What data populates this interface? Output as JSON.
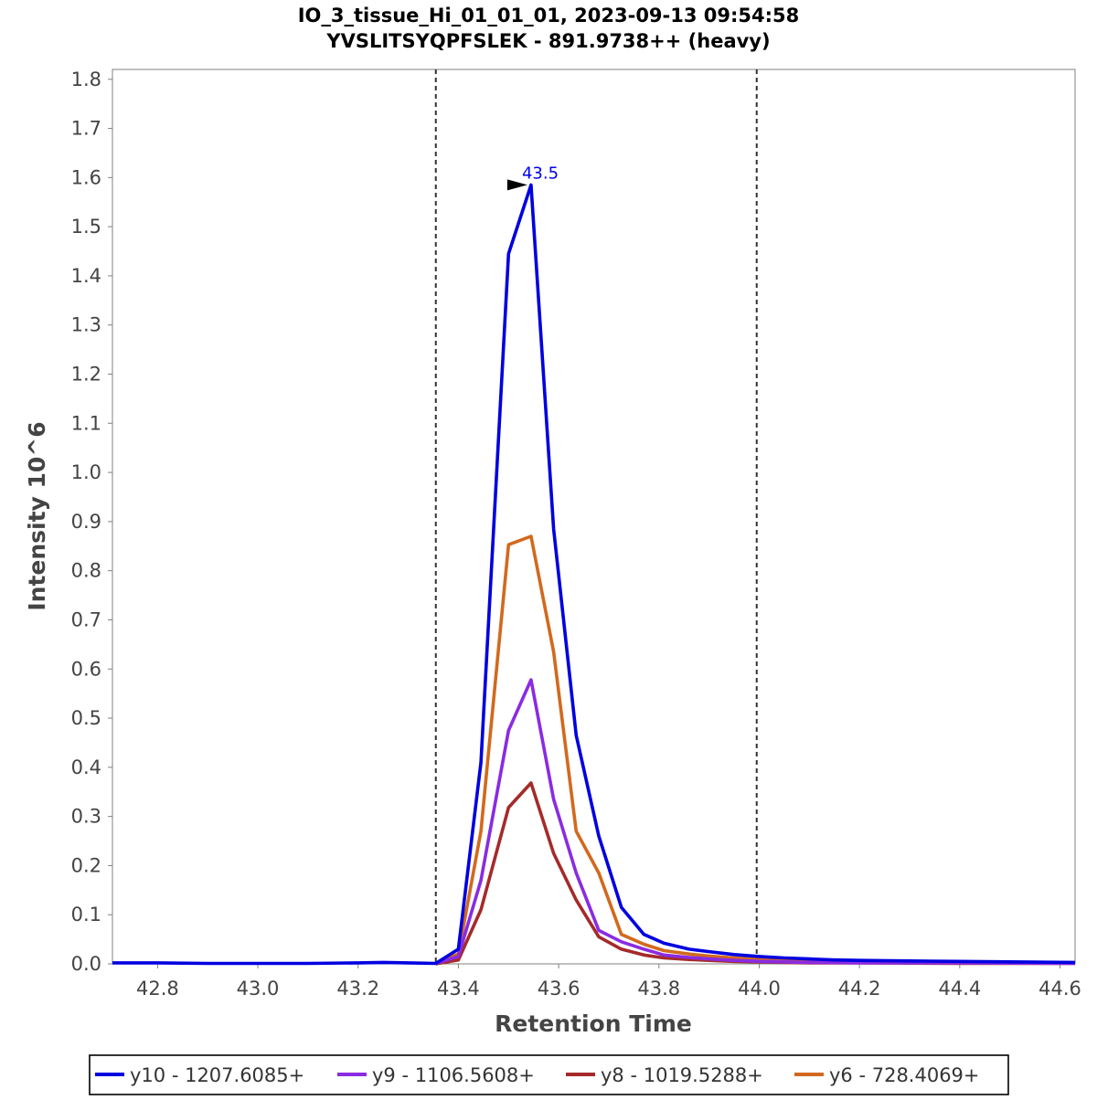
{
  "chart_data": {
    "type": "line",
    "title": "IO_3_tissue_Hi_01_01_01, 2023-09-13 09:54:58",
    "subtitle": "YVSLITSYQPFSLEK - 891.9738++ (heavy)",
    "xlabel": "Retention Time",
    "ylabel": "Intensity 10^6",
    "xlim": [
      42.71,
      44.63
    ],
    "ylim": [
      0.0,
      1.82
    ],
    "x_ticks": [
      "42.8",
      "43.0",
      "43.2",
      "43.4",
      "43.6",
      "43.8",
      "44.0",
      "44.2",
      "44.4",
      "44.6"
    ],
    "y_ticks": [
      "0.0",
      "0.1",
      "0.2",
      "0.3",
      "0.4",
      "0.5",
      "0.6",
      "0.7",
      "0.8",
      "0.9",
      "1.0",
      "1.1",
      "1.2",
      "1.3",
      "1.4",
      "1.5",
      "1.6",
      "1.7",
      "1.8"
    ],
    "grid": false,
    "legend_position": "bottom",
    "boundaries": [
      43.355,
      43.995
    ],
    "peak_annotation": {
      "label": "43.5",
      "x": 43.545,
      "y": 1.585,
      "color": "#0000ee"
    },
    "series": [
      {
        "name": "y10 - 1207.6085+",
        "color": "#0000e0",
        "x": [
          42.71,
          42.8,
          42.9,
          43.0,
          43.1,
          43.2,
          43.25,
          43.3,
          43.355,
          43.4,
          43.445,
          43.5,
          43.545,
          43.59,
          43.635,
          43.68,
          43.725,
          43.77,
          43.81,
          43.86,
          43.9,
          43.95,
          44.0,
          44.05,
          44.1,
          44.15,
          44.2,
          44.3,
          44.4,
          44.5,
          44.63
        ],
        "y": [
          0.002,
          0.002,
          0.001,
          0.001,
          0.001,
          0.002,
          0.003,
          0.002,
          0.001,
          0.03,
          0.41,
          1.445,
          1.585,
          0.885,
          0.465,
          0.26,
          0.115,
          0.06,
          0.042,
          0.03,
          0.025,
          0.019,
          0.015,
          0.012,
          0.01,
          0.008,
          0.007,
          0.006,
          0.005,
          0.004,
          0.003
        ]
      },
      {
        "name": "y9 - 1106.5608+",
        "color": "#8a2be2",
        "x": [
          43.355,
          43.4,
          43.445,
          43.5,
          43.545,
          43.59,
          43.635,
          43.68,
          43.725,
          43.77,
          43.81,
          43.86,
          43.9,
          43.95,
          44.0,
          44.05,
          44.1,
          44.2,
          44.4,
          44.63
        ],
        "y": [
          0.001,
          0.015,
          0.17,
          0.475,
          0.578,
          0.335,
          0.185,
          0.068,
          0.045,
          0.03,
          0.018,
          0.013,
          0.01,
          0.007,
          0.005,
          0.004,
          0.003,
          0.002,
          0.002,
          0.001
        ]
      },
      {
        "name": "y8 - 1019.5288+",
        "color": "#a52a2a",
        "x": [
          43.355,
          43.4,
          43.445,
          43.5,
          43.545,
          43.59,
          43.635,
          43.68,
          43.725,
          43.77,
          43.81,
          43.86,
          43.9,
          43.95,
          44.0,
          44.05,
          44.1,
          44.2,
          44.4,
          44.63
        ],
        "y": [
          0.0,
          0.008,
          0.11,
          0.318,
          0.368,
          0.225,
          0.13,
          0.055,
          0.03,
          0.018,
          0.012,
          0.009,
          0.007,
          0.005,
          0.004,
          0.003,
          0.002,
          0.002,
          0.001,
          0.001
        ]
      },
      {
        "name": "y6 - 728.4069+",
        "color": "#d2691e",
        "x": [
          43.355,
          43.4,
          43.445,
          43.5,
          43.545,
          43.59,
          43.635,
          43.68,
          43.725,
          43.77,
          43.81,
          43.86,
          43.9,
          43.95,
          44.0,
          44.05,
          44.1,
          44.2,
          44.4,
          44.63
        ],
        "y": [
          0.001,
          0.02,
          0.27,
          0.853,
          0.87,
          0.635,
          0.27,
          0.185,
          0.06,
          0.04,
          0.027,
          0.02,
          0.016,
          0.012,
          0.009,
          0.007,
          0.005,
          0.004,
          0.003,
          0.002
        ]
      }
    ]
  }
}
